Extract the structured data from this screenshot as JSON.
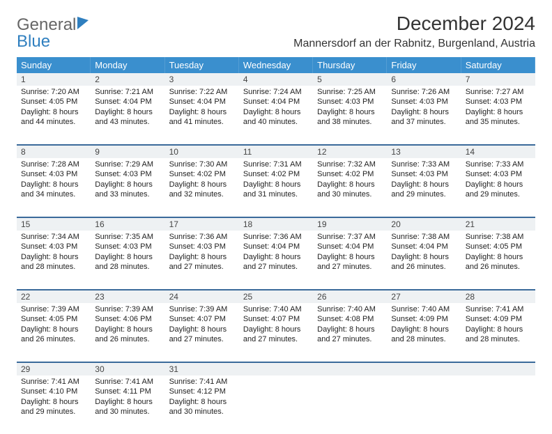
{
  "logo": {
    "text1": "General",
    "text2": "Blue"
  },
  "title": "December 2024",
  "location": "Mannersdorf an der Rabnitz, Burgenland, Austria",
  "colors": {
    "header_bg": "#3a8fce",
    "header_text": "#ffffff",
    "daynum_bg": "#eef1f3",
    "week_divider": "#3a6a9a",
    "body_text": "#222222",
    "page_bg": "#ffffff",
    "logo_gray": "#666666",
    "logo_blue": "#2f7fbf"
  },
  "typography": {
    "title_fontsize": 28,
    "location_fontsize": 16,
    "dayname_fontsize": 13,
    "daynum_fontsize": 12,
    "cell_fontsize": 11
  },
  "layout": {
    "columns": 7,
    "cell_min_height": 84
  },
  "day_names": [
    "Sunday",
    "Monday",
    "Tuesday",
    "Wednesday",
    "Thursday",
    "Friday",
    "Saturday"
  ],
  "weeks": [
    [
      {
        "n": "1",
        "sr": "Sunrise: 7:20 AM",
        "ss": "Sunset: 4:05 PM",
        "d1": "Daylight: 8 hours",
        "d2": "and 44 minutes."
      },
      {
        "n": "2",
        "sr": "Sunrise: 7:21 AM",
        "ss": "Sunset: 4:04 PM",
        "d1": "Daylight: 8 hours",
        "d2": "and 43 minutes."
      },
      {
        "n": "3",
        "sr": "Sunrise: 7:22 AM",
        "ss": "Sunset: 4:04 PM",
        "d1": "Daylight: 8 hours",
        "d2": "and 41 minutes."
      },
      {
        "n": "4",
        "sr": "Sunrise: 7:24 AM",
        "ss": "Sunset: 4:04 PM",
        "d1": "Daylight: 8 hours",
        "d2": "and 40 minutes."
      },
      {
        "n": "5",
        "sr": "Sunrise: 7:25 AM",
        "ss": "Sunset: 4:03 PM",
        "d1": "Daylight: 8 hours",
        "d2": "and 38 minutes."
      },
      {
        "n": "6",
        "sr": "Sunrise: 7:26 AM",
        "ss": "Sunset: 4:03 PM",
        "d1": "Daylight: 8 hours",
        "d2": "and 37 minutes."
      },
      {
        "n": "7",
        "sr": "Sunrise: 7:27 AM",
        "ss": "Sunset: 4:03 PM",
        "d1": "Daylight: 8 hours",
        "d2": "and 35 minutes."
      }
    ],
    [
      {
        "n": "8",
        "sr": "Sunrise: 7:28 AM",
        "ss": "Sunset: 4:03 PM",
        "d1": "Daylight: 8 hours",
        "d2": "and 34 minutes."
      },
      {
        "n": "9",
        "sr": "Sunrise: 7:29 AM",
        "ss": "Sunset: 4:03 PM",
        "d1": "Daylight: 8 hours",
        "d2": "and 33 minutes."
      },
      {
        "n": "10",
        "sr": "Sunrise: 7:30 AM",
        "ss": "Sunset: 4:02 PM",
        "d1": "Daylight: 8 hours",
        "d2": "and 32 minutes."
      },
      {
        "n": "11",
        "sr": "Sunrise: 7:31 AM",
        "ss": "Sunset: 4:02 PM",
        "d1": "Daylight: 8 hours",
        "d2": "and 31 minutes."
      },
      {
        "n": "12",
        "sr": "Sunrise: 7:32 AM",
        "ss": "Sunset: 4:02 PM",
        "d1": "Daylight: 8 hours",
        "d2": "and 30 minutes."
      },
      {
        "n": "13",
        "sr": "Sunrise: 7:33 AM",
        "ss": "Sunset: 4:03 PM",
        "d1": "Daylight: 8 hours",
        "d2": "and 29 minutes."
      },
      {
        "n": "14",
        "sr": "Sunrise: 7:33 AM",
        "ss": "Sunset: 4:03 PM",
        "d1": "Daylight: 8 hours",
        "d2": "and 29 minutes."
      }
    ],
    [
      {
        "n": "15",
        "sr": "Sunrise: 7:34 AM",
        "ss": "Sunset: 4:03 PM",
        "d1": "Daylight: 8 hours",
        "d2": "and 28 minutes."
      },
      {
        "n": "16",
        "sr": "Sunrise: 7:35 AM",
        "ss": "Sunset: 4:03 PM",
        "d1": "Daylight: 8 hours",
        "d2": "and 28 minutes."
      },
      {
        "n": "17",
        "sr": "Sunrise: 7:36 AM",
        "ss": "Sunset: 4:03 PM",
        "d1": "Daylight: 8 hours",
        "d2": "and 27 minutes."
      },
      {
        "n": "18",
        "sr": "Sunrise: 7:36 AM",
        "ss": "Sunset: 4:04 PM",
        "d1": "Daylight: 8 hours",
        "d2": "and 27 minutes."
      },
      {
        "n": "19",
        "sr": "Sunrise: 7:37 AM",
        "ss": "Sunset: 4:04 PM",
        "d1": "Daylight: 8 hours",
        "d2": "and 27 minutes."
      },
      {
        "n": "20",
        "sr": "Sunrise: 7:38 AM",
        "ss": "Sunset: 4:04 PM",
        "d1": "Daylight: 8 hours",
        "d2": "and 26 minutes."
      },
      {
        "n": "21",
        "sr": "Sunrise: 7:38 AM",
        "ss": "Sunset: 4:05 PM",
        "d1": "Daylight: 8 hours",
        "d2": "and 26 minutes."
      }
    ],
    [
      {
        "n": "22",
        "sr": "Sunrise: 7:39 AM",
        "ss": "Sunset: 4:05 PM",
        "d1": "Daylight: 8 hours",
        "d2": "and 26 minutes."
      },
      {
        "n": "23",
        "sr": "Sunrise: 7:39 AM",
        "ss": "Sunset: 4:06 PM",
        "d1": "Daylight: 8 hours",
        "d2": "and 26 minutes."
      },
      {
        "n": "24",
        "sr": "Sunrise: 7:39 AM",
        "ss": "Sunset: 4:07 PM",
        "d1": "Daylight: 8 hours",
        "d2": "and 27 minutes."
      },
      {
        "n": "25",
        "sr": "Sunrise: 7:40 AM",
        "ss": "Sunset: 4:07 PM",
        "d1": "Daylight: 8 hours",
        "d2": "and 27 minutes."
      },
      {
        "n": "26",
        "sr": "Sunrise: 7:40 AM",
        "ss": "Sunset: 4:08 PM",
        "d1": "Daylight: 8 hours",
        "d2": "and 27 minutes."
      },
      {
        "n": "27",
        "sr": "Sunrise: 7:40 AM",
        "ss": "Sunset: 4:09 PM",
        "d1": "Daylight: 8 hours",
        "d2": "and 28 minutes."
      },
      {
        "n": "28",
        "sr": "Sunrise: 7:41 AM",
        "ss": "Sunset: 4:09 PM",
        "d1": "Daylight: 8 hours",
        "d2": "and 28 minutes."
      }
    ],
    [
      {
        "n": "29",
        "sr": "Sunrise: 7:41 AM",
        "ss": "Sunset: 4:10 PM",
        "d1": "Daylight: 8 hours",
        "d2": "and 29 minutes."
      },
      {
        "n": "30",
        "sr": "Sunrise: 7:41 AM",
        "ss": "Sunset: 4:11 PM",
        "d1": "Daylight: 8 hours",
        "d2": "and 30 minutes."
      },
      {
        "n": "31",
        "sr": "Sunrise: 7:41 AM",
        "ss": "Sunset: 4:12 PM",
        "d1": "Daylight: 8 hours",
        "d2": "and 30 minutes."
      },
      null,
      null,
      null,
      null
    ]
  ]
}
